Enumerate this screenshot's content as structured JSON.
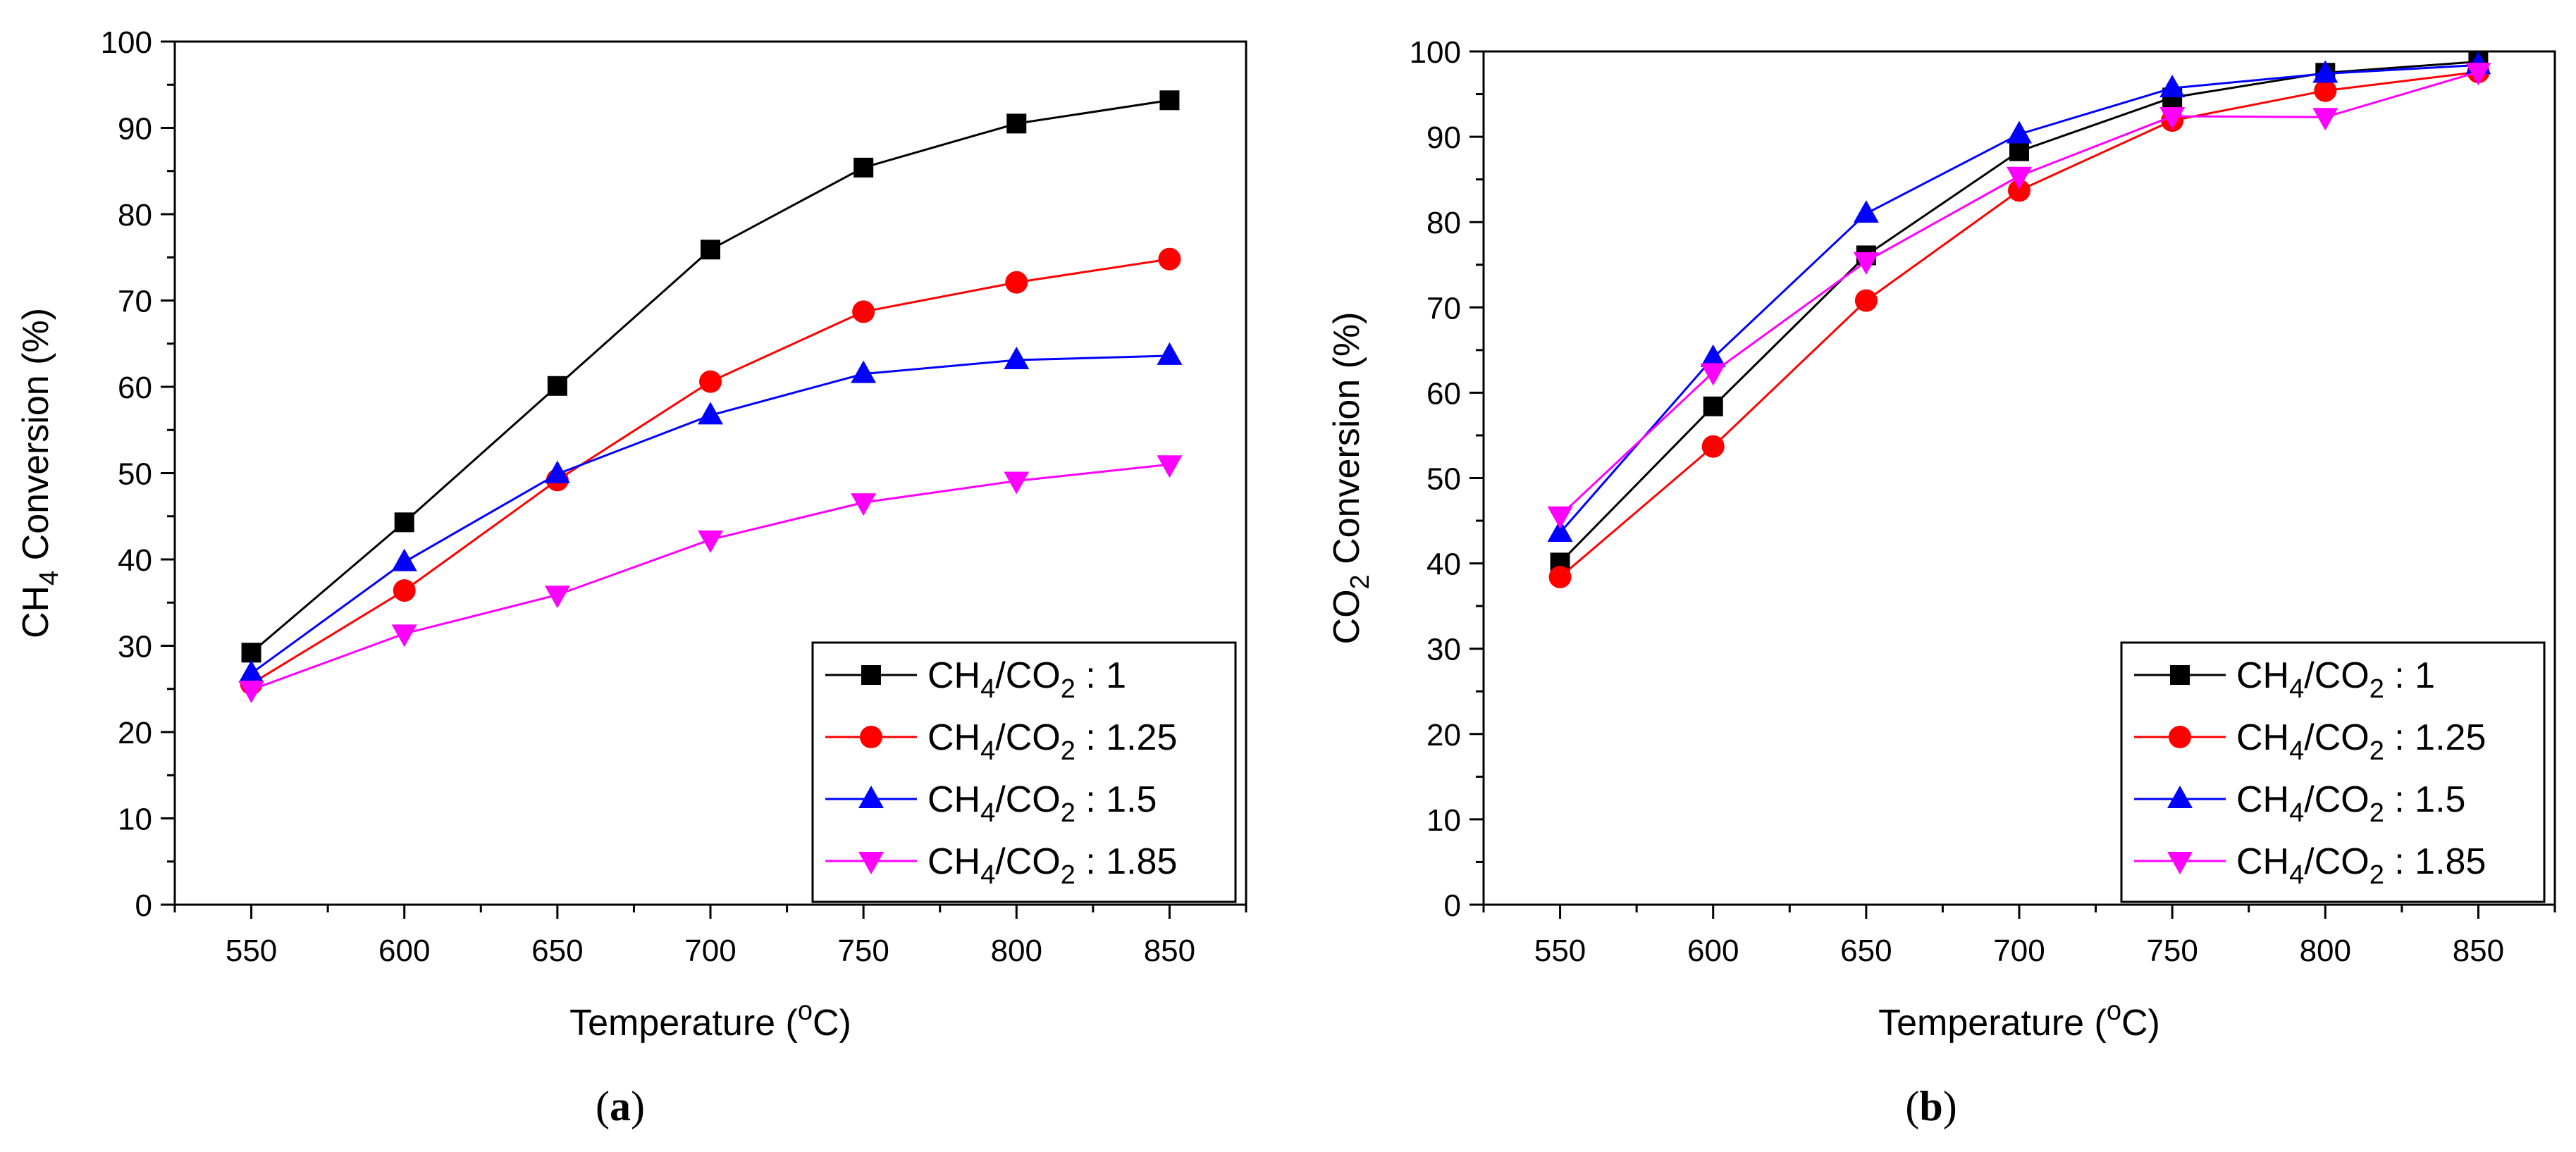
{
  "chart_data": [
    {
      "type": "line",
      "panel_label": "a",
      "title": "",
      "xlabel": "Temperature (",
      "xlabel_sup": "o",
      "xlabel_tail": "C)",
      "ylabel_main": "CH",
      "ylabel_sub": "4",
      "ylabel_tail": " Conversion (%)",
      "x": [
        550,
        600,
        650,
        700,
        750,
        800,
        850
      ],
      "x_ticks": [
        "550",
        "600",
        "650",
        "700",
        "750",
        "800",
        "850"
      ],
      "y_ticks": [
        "0",
        "10",
        "20",
        "30",
        "40",
        "50",
        "60",
        "70",
        "80",
        "90",
        "100"
      ],
      "xlim": [
        525,
        875
      ],
      "ylim": [
        0,
        100
      ],
      "grid": false,
      "legend_position": "bottom-right",
      "series": [
        {
          "name": "CH4/CO2 : 1",
          "legend": {
            "a": "CH",
            "b": "4",
            "c": "/CO",
            "d": "2",
            "e": " : 1"
          },
          "color": "#000000",
          "marker": "square",
          "values": [
            29.2,
            44.3,
            60.1,
            75.9,
            85.4,
            90.5,
            93.2
          ]
        },
        {
          "name": "CH4/CO2 : 1.25",
          "legend": {
            "a": "CH",
            "b": "4",
            "c": "/CO",
            "d": "2",
            "e": " : 1.25"
          },
          "color": "#ff0000",
          "marker": "circle",
          "values": [
            25.6,
            36.4,
            49.2,
            60.6,
            68.7,
            72.1,
            74.8
          ]
        },
        {
          "name": "CH4/CO2 : 1.5",
          "legend": {
            "a": "CH",
            "b": "4",
            "c": "/CO",
            "d": "2",
            "e": " : 1.5"
          },
          "color": "#0000ff",
          "marker": "triangle-up",
          "values": [
            26.8,
            39.7,
            49.9,
            56.7,
            61.5,
            63.1,
            63.6
          ]
        },
        {
          "name": "CH4/CO2 : 1.85",
          "legend": {
            "a": "CH",
            "b": "4",
            "c": "/CO",
            "d": "2",
            "e": " : 1.85"
          },
          "color": "#ff00ff",
          "marker": "triangle-down",
          "values": [
            24.9,
            31.4,
            35.9,
            42.3,
            46.6,
            49.1,
            51.0
          ]
        }
      ]
    },
    {
      "type": "line",
      "panel_label": "b",
      "title": "",
      "xlabel": "Temperature (",
      "xlabel_sup": "o",
      "xlabel_tail": "C)",
      "ylabel_main": "CO",
      "ylabel_sub": "2",
      "ylabel_tail": " Conversion (%)",
      "x": [
        550,
        600,
        650,
        700,
        750,
        800,
        850
      ],
      "x_ticks": [
        "550",
        "600",
        "650",
        "700",
        "750",
        "800",
        "850"
      ],
      "y_ticks": [
        "0",
        "10",
        "20",
        "30",
        "40",
        "50",
        "60",
        "70",
        "80",
        "90",
        "100"
      ],
      "xlim": [
        525,
        875
      ],
      "ylim": [
        0,
        100
      ],
      "grid": false,
      "legend_position": "bottom-right",
      "series": [
        {
          "name": "CH4/CO2 : 1",
          "legend": {
            "a": "CH",
            "b": "4",
            "c": "/CO",
            "d": "2",
            "e": " : 1"
          },
          "color": "#000000",
          "marker": "square",
          "values": [
            40.1,
            58.4,
            76.1,
            88.3,
            94.6,
            97.5,
            98.8
          ]
        },
        {
          "name": "CH4/CO2 : 1.25",
          "legend": {
            "a": "CH",
            "b": "4",
            "c": "/CO",
            "d": "2",
            "e": " : 1.25"
          },
          "color": "#ff0000",
          "marker": "circle",
          "values": [
            38.4,
            53.7,
            70.8,
            83.7,
            91.9,
            95.4,
            97.6
          ]
        },
        {
          "name": "CH4/CO2 : 1.5",
          "legend": {
            "a": "CH",
            "b": "4",
            "c": "/CO",
            "d": "2",
            "e": " : 1.5"
          },
          "color": "#0000ff",
          "marker": "triangle-up",
          "values": [
            43.6,
            64.1,
            81.0,
            90.3,
            95.7,
            97.4,
            98.4
          ]
        },
        {
          "name": "CH4/CO2 : 1.85",
          "legend": {
            "a": "CH",
            "b": "4",
            "c": "/CO",
            "d": "2",
            "e": " : 1.85"
          },
          "color": "#ff00ff",
          "marker": "triangle-down",
          "values": [
            45.6,
            62.4,
            75.4,
            85.4,
            92.4,
            92.3,
            97.6
          ]
        }
      ]
    }
  ]
}
